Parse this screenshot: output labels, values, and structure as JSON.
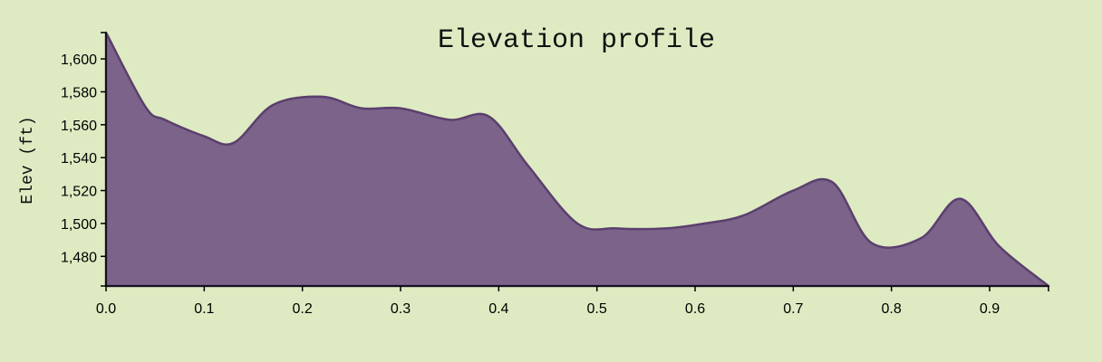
{
  "chart_data": {
    "type": "area",
    "title": "Elevation profile",
    "xlabel": "",
    "ylabel": "Elev (ft)",
    "xlim": [
      0.0,
      0.96
    ],
    "ylim": [
      1462,
      1616
    ],
    "x_ticks": [
      "0.0",
      "0.1",
      "0.2",
      "0.3",
      "0.4",
      "0.5",
      "0.6",
      "0.7",
      "0.8",
      "0.9"
    ],
    "x_tick_values": [
      0.0,
      0.1,
      0.2,
      0.3,
      0.4,
      0.5,
      0.6,
      0.7,
      0.8,
      0.9
    ],
    "y_ticks": [
      "1,480",
      "1,500",
      "1,520",
      "1,540",
      "1,560",
      "1,580",
      "1,600"
    ],
    "y_tick_values": [
      1480,
      1500,
      1520,
      1540,
      1560,
      1580,
      1600
    ],
    "grid": false,
    "colors": {
      "fill": "#7b6389",
      "line": "#5b3f6e",
      "background": "#deebc2"
    },
    "series": [
      {
        "x": [
          0.0,
          0.04,
          0.06,
          0.1,
          0.13,
          0.17,
          0.22,
          0.26,
          0.3,
          0.35,
          0.39,
          0.43,
          0.48,
          0.52,
          0.57,
          0.61,
          0.65,
          0.7,
          0.74,
          0.78,
          0.83,
          0.87,
          0.91,
          0.96
        ],
        "y": [
          1616,
          1571,
          1563,
          1553,
          1549,
          1572,
          1577,
          1570,
          1570,
          1563,
          1565,
          1535,
          1500,
          1497,
          1497,
          1500,
          1505,
          1520,
          1525,
          1488,
          1491,
          1515,
          1486,
          1462
        ]
      }
    ]
  }
}
